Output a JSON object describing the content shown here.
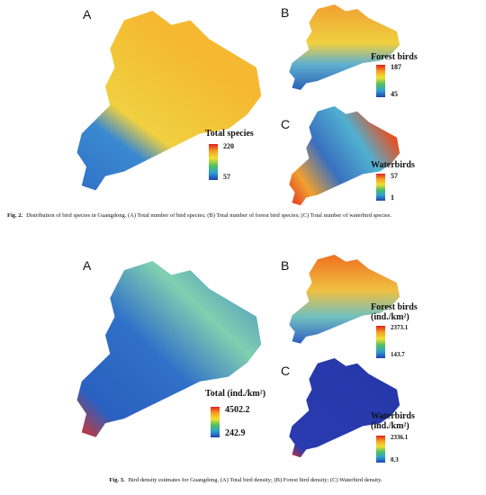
{
  "figures": [
    {
      "label": "Fig. 2.",
      "caption": "Distribution of bird species in Guangdong. (A) Total number of bird species; (B) Total number of forest bird species; (C) Total number of waterbird species.",
      "panels": [
        {
          "letter": "A",
          "legend": {
            "title": "Total species",
            "max": "220",
            "min": "57"
          }
        },
        {
          "letter": "B",
          "legend": {
            "title": "Forest birds",
            "max": "187",
            "min": "45"
          }
        },
        {
          "letter": "C",
          "legend": {
            "title": "Waterbirds",
            "max": "57",
            "min": "1"
          }
        }
      ]
    },
    {
      "label": "Fig. 3.",
      "caption": "Bird density estimates for Guangdong. (A) Total bird density; (B) Forest bird density; (C) Waterbird density.",
      "panels": [
        {
          "letter": "A",
          "legend": {
            "title": "Total (ind./km²)",
            "max": "4502.2",
            "min": "242.9"
          }
        },
        {
          "letter": "B",
          "legend": {
            "title": "Forest birds (ind./km²)",
            "max": "2373.1",
            "min": "143.7"
          }
        },
        {
          "letter": "C",
          "legend": {
            "title": "Waterbirds (ind./km²)",
            "max": "2336.1",
            "min": "0.3"
          }
        }
      ]
    }
  ]
}
